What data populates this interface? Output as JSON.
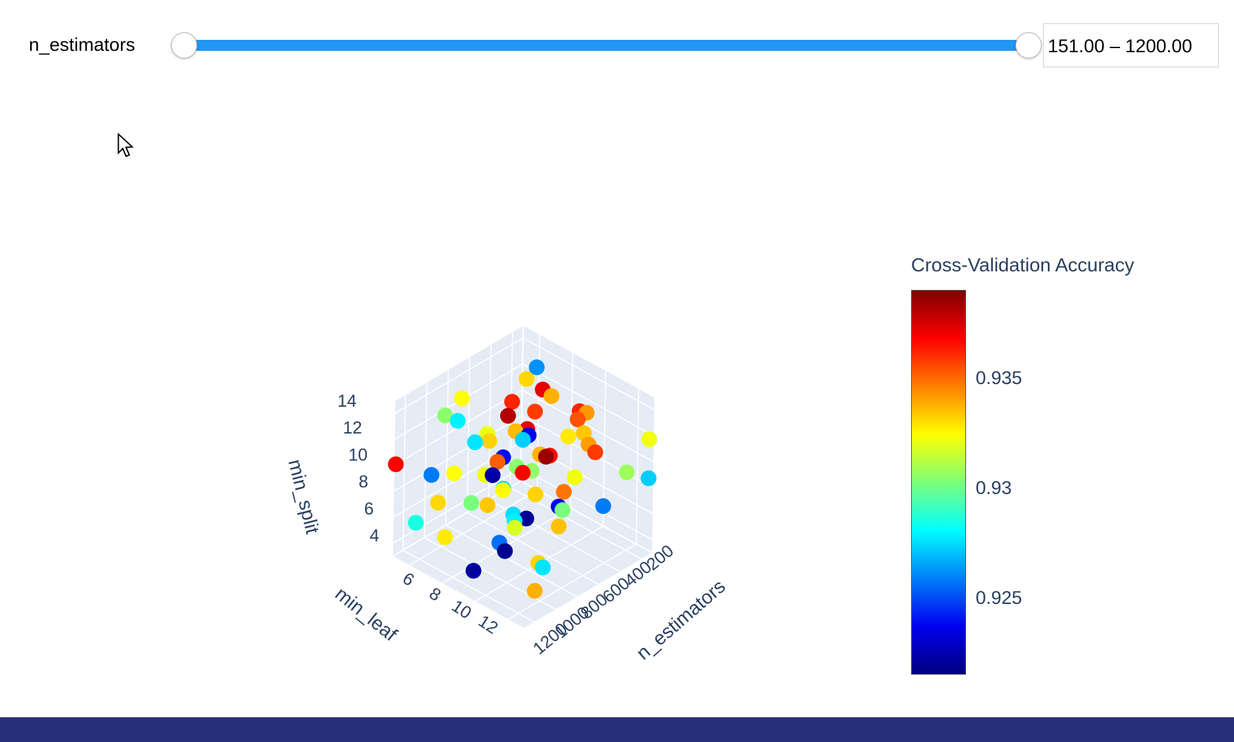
{
  "slider": {
    "label": "n_estimators",
    "readout": "151.00 – 1200.00",
    "min_value": 151.0,
    "max_value": 1200.0,
    "track_color": "#2196f3"
  },
  "colors": {
    "accent_blue": "#2196f3",
    "bottom_bar": "#26307b",
    "plot_wall": "#e5ecf6",
    "grid_line": "#ffffff",
    "plot_font": "#2a3f5f"
  },
  "chart_data": {
    "type": "scatter3d",
    "xlabel": "n_estimators",
    "ylabel": "min_leaf",
    "zlabel": "min_split",
    "x_ticks": [
      200,
      400,
      600,
      800,
      1000,
      1200
    ],
    "y_ticks": [
      6,
      8,
      10,
      12
    ],
    "z_ticks": [
      4,
      6,
      8,
      10,
      12,
      14
    ],
    "x_range": [
      100,
      1300
    ],
    "y_range": [
      5,
      13
    ],
    "z_range": [
      3,
      15
    ],
    "grid": true,
    "colorbar": {
      "title": "Cross-Validation Accuracy",
      "tick_labels": [
        "0.935",
        "0.93",
        "0.925"
      ],
      "tick_values": [
        0.935,
        0.93,
        0.925
      ],
      "cmin": 0.9215,
      "cmax": 0.939,
      "colormap": "jet",
      "stops": [
        [
          0,
          "#000080"
        ],
        [
          0.125,
          "#0000f1"
        ],
        [
          0.375,
          "#00ffff"
        ],
        [
          0.5,
          "#7dff7a"
        ],
        [
          0.625,
          "#ffff00"
        ],
        [
          0.875,
          "#ff0000"
        ],
        [
          1,
          "#800000"
        ]
      ]
    },
    "points_schema": [
      "n_estimators",
      "min_leaf",
      "min_split",
      "cv_accuracy"
    ],
    "points": [
      [
        220,
        7,
        12,
        0.9372
      ],
      [
        980,
        6,
        13,
        0.9305
      ],
      [
        450,
        9,
        14,
        0.9338
      ],
      [
        700,
        8,
        13,
        0.9381
      ],
      [
        1150,
        10,
        12,
        0.9222
      ],
      [
        350,
        6,
        11,
        0.9362
      ],
      [
        600,
        11,
        13,
        0.9328
      ],
      [
        850,
        7,
        11,
        0.9276
      ],
      [
        1050,
        9,
        14,
        0.9321
      ],
      [
        250,
        10,
        10,
        0.9341
      ],
      [
        500,
        12,
        12,
        0.9358
      ],
      [
        900,
        11,
        10,
        0.9332
      ],
      [
        1200,
        8,
        11,
        0.9324
      ],
      [
        400,
        7,
        9,
        0.9272
      ],
      [
        650,
        10,
        11,
        0.9385
      ],
      [
        800,
        12,
        9,
        0.9302
      ],
      [
        300,
        8,
        8,
        0.9366
      ],
      [
        1100,
        6,
        9,
        0.9258
      ],
      [
        550,
        9,
        10,
        0.9337
      ],
      [
        750,
        7,
        8,
        0.9322
      ],
      [
        950,
        10,
        8,
        0.9275
      ],
      [
        200,
        12,
        9,
        0.9308
      ],
      [
        480,
        6,
        7,
        0.9352
      ],
      [
        680,
        11,
        8,
        0.9238
      ],
      [
        880,
        8,
        7,
        0.9334
      ],
      [
        1180,
        11,
        7,
        0.9218
      ],
      [
        320,
        9,
        6,
        0.9348
      ],
      [
        580,
        7,
        6,
        0.9325
      ],
      [
        780,
        9,
        6,
        0.9278
      ],
      [
        1020,
        12,
        6,
        0.9332
      ],
      [
        240,
        6,
        5,
        0.9368
      ],
      [
        520,
        10,
        5,
        0.9335
      ],
      [
        720,
        6,
        5,
        0.9302
      ],
      [
        920,
        9,
        5,
        0.9256
      ],
      [
        1120,
        7,
        5,
        0.9328
      ],
      [
        1050,
        12,
        4,
        0.9338
      ],
      [
        620,
        8,
        4,
        0.9318
      ],
      [
        820,
        11,
        4,
        0.9276
      ],
      [
        1160,
        9,
        4,
        0.9221
      ],
      [
        280,
        7,
        14,
        0.9262
      ],
      [
        530,
        8,
        15,
        0.9331
      ],
      [
        760,
        10,
        15,
        0.9358
      ],
      [
        980,
        7,
        15,
        0.9324
      ],
      [
        430,
        11,
        14,
        0.9342
      ],
      [
        660,
        9,
        12,
        0.9236
      ],
      [
        860,
        6,
        12,
        0.9278
      ],
      [
        1080,
        11,
        13,
        0.9305
      ],
      [
        200,
        9,
        11,
        0.9354
      ],
      [
        470,
        7,
        10,
        0.9336
      ],
      [
        690,
        12,
        11,
        0.9322
      ],
      [
        890,
        9,
        9,
        0.9274
      ],
      [
        1140,
        12,
        10,
        0.9219
      ],
      [
        340,
        10,
        13,
        0.9362
      ],
      [
        560,
        6,
        9,
        0.9332
      ],
      [
        740,
        8,
        10,
        0.9239
      ],
      [
        940,
        11,
        12,
        0.9306
      ],
      [
        1190,
        7,
        8,
        0.9331
      ],
      [
        260,
        11,
        6,
        0.9258
      ],
      [
        610,
        12,
        14,
        0.9334
      ],
      [
        830,
        10,
        14,
        0.9372
      ],
      [
        1280,
        5,
        10,
        0.9368
      ],
      [
        1240,
        6,
        6,
        0.9285
      ],
      [
        150,
        13,
        9,
        0.9272
      ],
      [
        150,
        13,
        12,
        0.9322
      ]
    ]
  }
}
